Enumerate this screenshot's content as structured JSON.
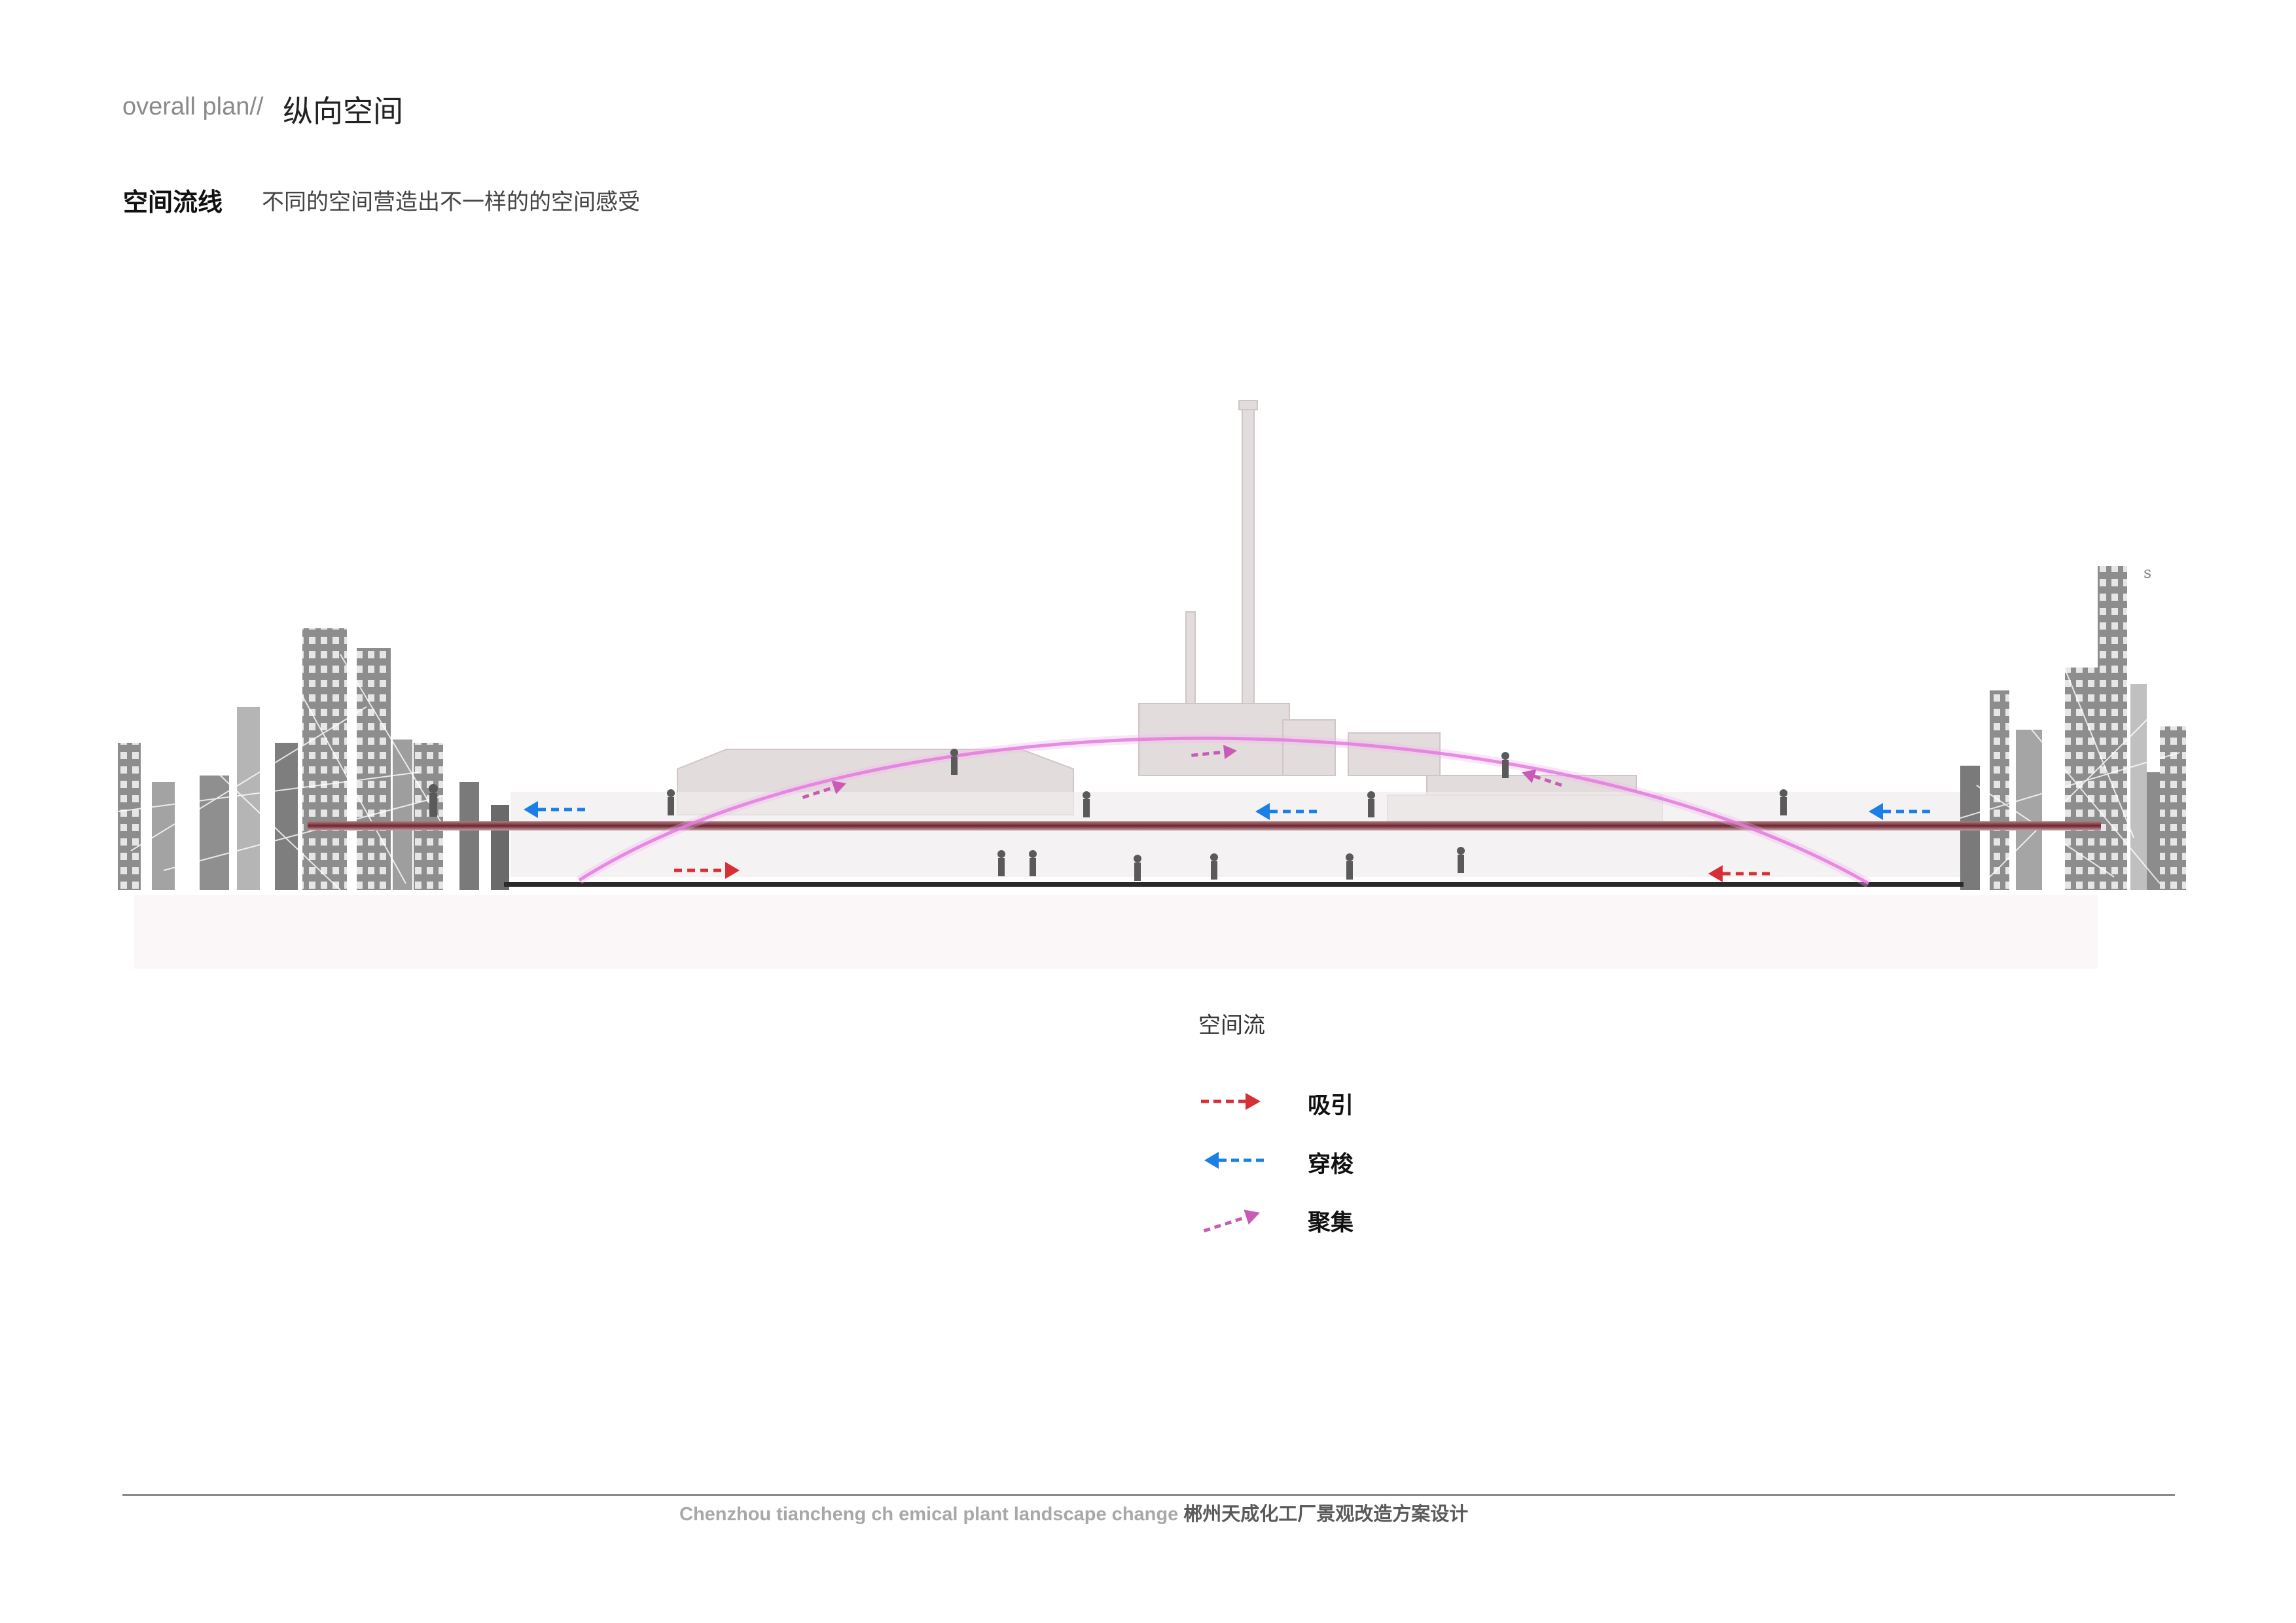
{
  "header": {
    "prefix": "overall plan//",
    "title": "纵向空间"
  },
  "section": {
    "title": "空间流线",
    "subtitle": "不同的空间营造出不一样的的空间感受"
  },
  "section_marker": "s",
  "legend": {
    "title": "空间流",
    "items": [
      {
        "label": "吸引",
        "color": "#d62f35",
        "icon": "arrow-right-dashed-icon"
      },
      {
        "label": "穿梭",
        "color": "#1a7fe6",
        "icon": "arrow-left-dashed-icon"
      },
      {
        "label": "聚集",
        "color": "#c95ab5",
        "icon": "arrow-diagonal-dashed-icon"
      }
    ]
  },
  "colors": {
    "attract": "#d62f35",
    "shuttle": "#1a7fe6",
    "gather": "#c95ab5",
    "upper_deck": "#7a2a32",
    "ground": "#2a2a2a",
    "buildings": "#9a9a9a"
  },
  "footer": {
    "text": "Chenzhou tiancheng ch emical plant landscape change",
    "text_cn": "郴州天成化工厂景观改造方案设计"
  }
}
